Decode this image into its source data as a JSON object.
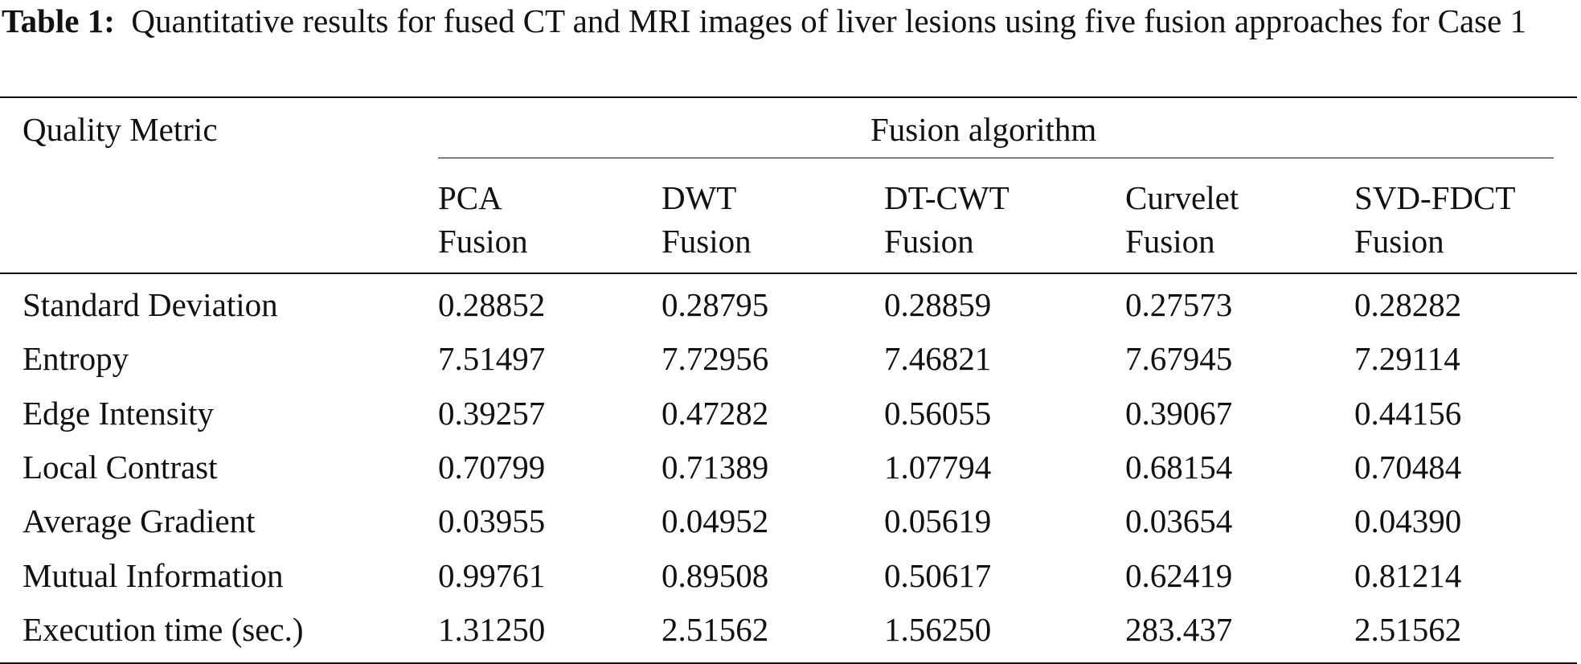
{
  "caption": {
    "label": "Table 1:",
    "text": "Quantitative results for fused CT and MRI images of liver lesions using five fusion approaches for Case 1"
  },
  "table": {
    "row_header": "Quality Metric",
    "group_header": "Fusion algorithm",
    "columns": [
      {
        "line1": "PCA",
        "line2": "Fusion"
      },
      {
        "line1": "DWT",
        "line2": "Fusion"
      },
      {
        "line1": "DT-CWT",
        "line2": "Fusion"
      },
      {
        "line1": "Curvelet",
        "line2": "Fusion"
      },
      {
        "line1": "SVD-FDCT",
        "line2": "Fusion"
      }
    ],
    "rows": [
      {
        "metric": "Standard Deviation",
        "values": [
          "0.28852",
          "0.28795",
          "0.28859",
          "0.27573",
          "0.28282"
        ]
      },
      {
        "metric": "Entropy",
        "values": [
          "7.51497",
          "7.72956",
          "7.46821",
          "7.67945",
          "7.29114"
        ]
      },
      {
        "metric": "Edge Intensity",
        "values": [
          "0.39257",
          "0.47282",
          "0.56055",
          "0.39067",
          "0.44156"
        ]
      },
      {
        "metric": "Local Contrast",
        "values": [
          "0.70799",
          "0.71389",
          "1.07794",
          "0.68154",
          "0.70484"
        ]
      },
      {
        "metric": "Average Gradient",
        "values": [
          "0.03955",
          "0.04952",
          "0.05619",
          "0.03654",
          "0.04390"
        ]
      },
      {
        "metric": "Mutual Information",
        "values": [
          "0.99761",
          "0.89508",
          "0.50617",
          "0.62419",
          "0.81214"
        ]
      },
      {
        "metric": "Execution time (sec.)",
        "values": [
          "1.31250",
          "2.51562",
          "1.56250",
          "283.437",
          "2.51562"
        ]
      }
    ]
  }
}
